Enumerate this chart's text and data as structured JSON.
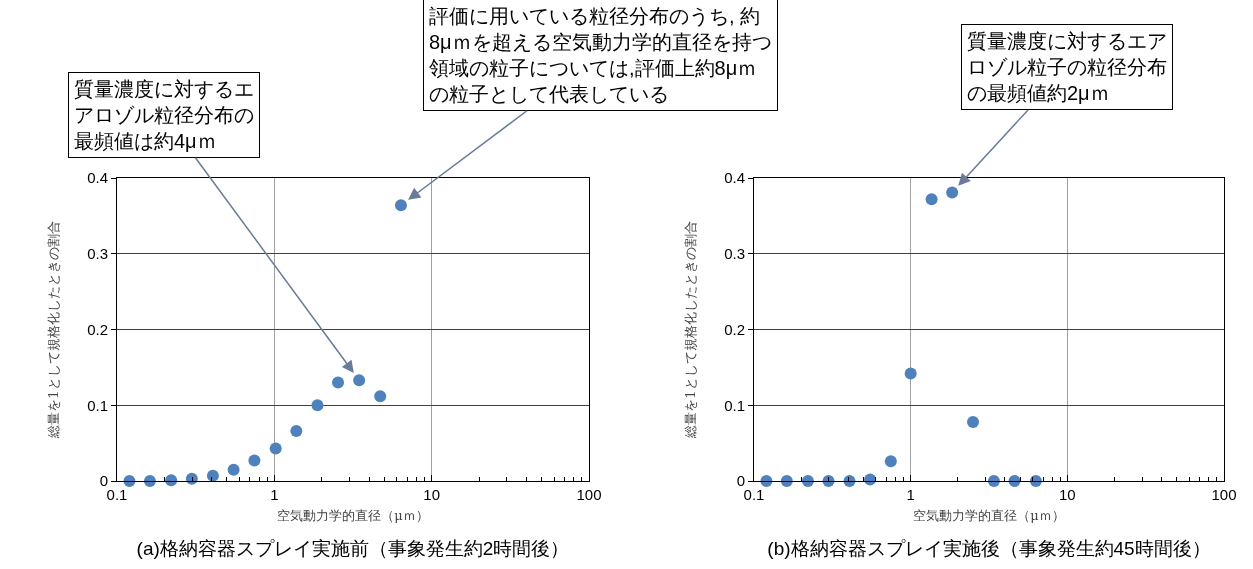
{
  "chart_data": [
    {
      "type": "scatter",
      "title": "(a)格納容器スプレイ実施前（事象発生約2時間後）",
      "xlabel": "空気動力学的直径（μｍ）",
      "ylabel": "総量を1として規格化したときの割合",
      "log": "x",
      "grid": true,
      "marker": "circle",
      "xlim": [
        0.1,
        100
      ],
      "xticks": [
        0.1,
        1,
        10,
        100
      ],
      "ylim": [
        0,
        0.4
      ],
      "yticks": [
        0,
        0.1,
        0.2,
        0.3,
        0.4
      ],
      "x": [
        0.12,
        0.162,
        0.221,
        0.299,
        0.407,
        0.551,
        0.747,
        1.02,
        1.38,
        1.88,
        2.54,
        3.46,
        4.71,
        6.38
      ],
      "series": [
        {
          "color": "#4f81bd",
          "values": [
            0.0,
            0.0,
            0.001,
            0.003,
            0.007,
            0.015,
            0.027,
            0.043,
            0.066,
            0.1,
            0.13,
            0.133,
            0.112,
            0.364
          ]
        }
      ],
      "annotations": [
        {
          "text": "質量濃度に対するエアロゾル粒径分布の最頻値は約4μｍ",
          "x": 3.46,
          "y": 0.133
        },
        {
          "text": "評価に用いている粒径分布のうち, 約8μｍを超える空気動力学的直径を持つ領域の粒子については,評価上約8μｍの粒子として代表している",
          "x": 6.38,
          "y": 0.364
        }
      ]
    },
    {
      "type": "scatter",
      "title": "(b)格納容器スプレイ実施後（事象発生約45時間後）",
      "xlabel": "空気動力学的直径（μｍ）",
      "ylabel": "総量を1として規格化したときの割合",
      "log": "x",
      "grid": true,
      "marker": "circle",
      "xlim": [
        0.1,
        100
      ],
      "xticks": [
        0.1,
        1,
        10,
        100
      ],
      "ylim": [
        0,
        0.4
      ],
      "yticks": [
        0,
        0.1,
        0.2,
        0.3,
        0.4
      ],
      "x": [
        0.12,
        0.162,
        0.221,
        0.299,
        0.407,
        0.551,
        0.747,
        1.0,
        1.36,
        1.84,
        2.5,
        3.4,
        4.6,
        6.3
      ],
      "series": [
        {
          "color": "#4f81bd",
          "values": [
            0.0,
            0.0,
            0.0,
            0.0,
            0.0,
            0.002,
            0.026,
            0.142,
            0.372,
            0.381,
            0.078,
            0.0,
            0.0,
            0.0
          ]
        }
      ],
      "annotations": [
        {
          "text": "質量濃度に対するエアロゾル粒子の粒径分布の最頻値約2μｍ",
          "x": 1.84,
          "y": 0.381
        }
      ]
    }
  ]
}
